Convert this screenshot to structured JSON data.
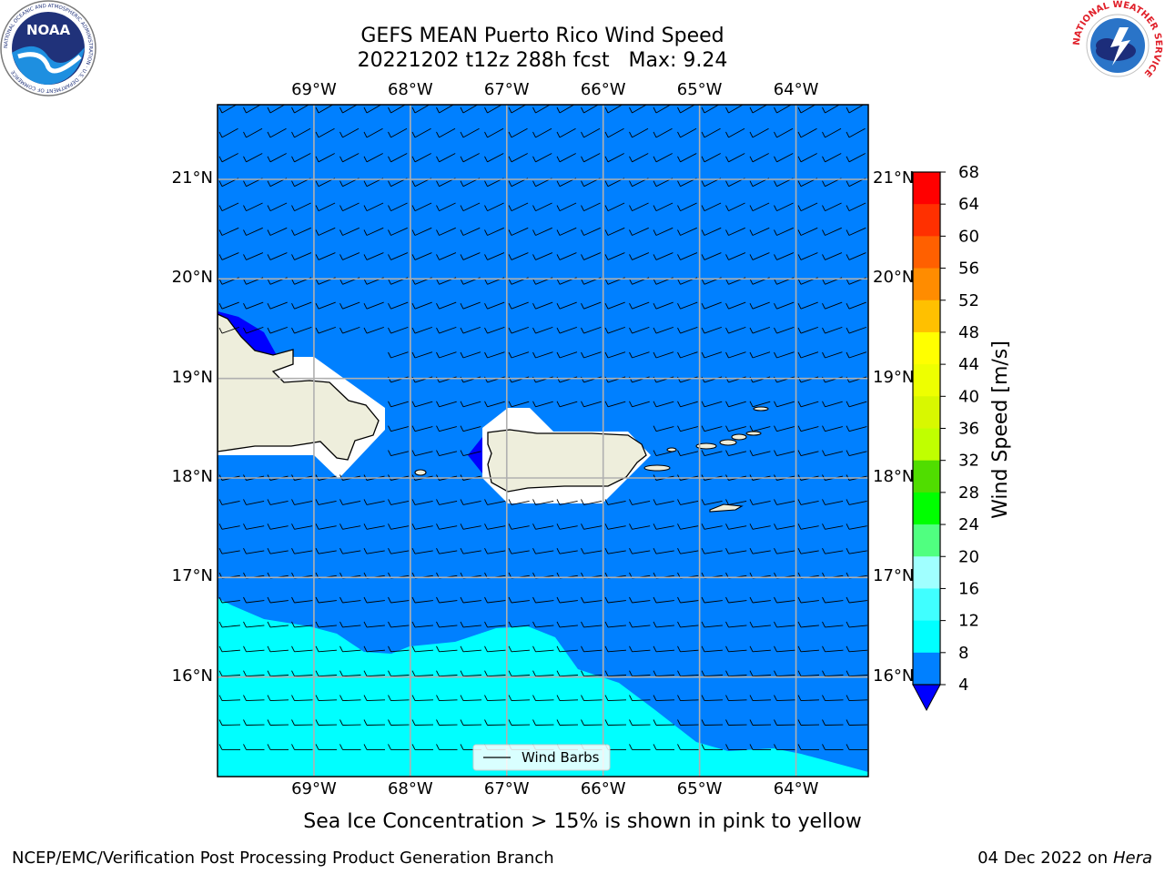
{
  "title": {
    "line1": "GEFS MEAN Puerto Rico Wind Speed",
    "line2": "20221202 t12z 288h fcst   Max: 9.24"
  },
  "logos": {
    "left": "noaa-logo",
    "left_text": "NOAA",
    "left_ring_text": "NATIONAL OCEANIC AND ATMOSPHERIC ADMINISTRATION · U.S. DEPARTMENT OF COMMERCE",
    "right": "nws-logo",
    "right_ring_text": "NATIONAL WEATHER SERVICE"
  },
  "map": {
    "lon_range": [
      -70.0,
      -63.25
    ],
    "lat_range": [
      15.0,
      21.75
    ],
    "lon_labels": [
      "69°W",
      "68°W",
      "67°W",
      "66°W",
      "65°W",
      "64°W"
    ],
    "lon_values": [
      -69,
      -68,
      -67,
      -66,
      -65,
      -64
    ],
    "lat_labels": [
      "21°N",
      "20°N",
      "19°N",
      "18°N",
      "17°N",
      "16°N"
    ],
    "lat_values": [
      21,
      20,
      19,
      18,
      17,
      16
    ],
    "grid": true,
    "legend": {
      "label": "Wind Barbs",
      "placement": "lower-center"
    }
  },
  "colorbar": {
    "label": "Wind Speed [m/s]",
    "ticks": [
      "68",
      "64",
      "60",
      "56",
      "52",
      "48",
      "44",
      "40",
      "36",
      "32",
      "28",
      "24",
      "20",
      "16",
      "12",
      "8",
      "4"
    ],
    "colors": {
      "below_4": "#0000ff",
      "4_8": "#0080ff",
      "8_12": "#00ffff",
      "12_16": "#40ffff",
      "16_20": "#a0ffff",
      "20_24": "#50ff80",
      "24_28": "#00ff00",
      "28_32": "#50dd00",
      "32_36": "#c0ff00",
      "36_40": "#d8f800",
      "40_44": "#eeff00",
      "44_48": "#ffff00",
      "48_52": "#ffc000",
      "52_56": "#ff8c00",
      "56_60": "#ff6000",
      "60_64": "#ff3000",
      "64_68": "#ff0000"
    }
  },
  "caption": "Sea Ice Concentration > 15% is shown in pink to yellow",
  "footer": {
    "left": "NCEP/EMC/Verification Post Processing Product Generation Branch",
    "date": "04 Dec 2022 on",
    "host": "Hera"
  }
}
